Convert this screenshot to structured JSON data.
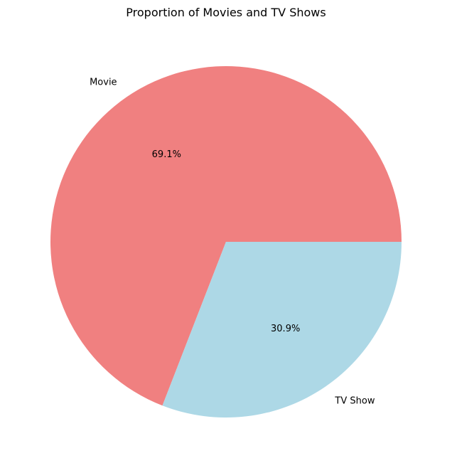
{
  "chart_data": {
    "type": "pie",
    "title": "Proportion of Movies and TV Shows",
    "slices": [
      {
        "label": "Movie",
        "value": 69.1,
        "pct_label": "69.1%",
        "color": "#f08080"
      },
      {
        "label": "TV Show",
        "value": 30.9,
        "pct_label": "30.9%",
        "color": "#add8e6"
      }
    ],
    "start_angle_deg": 0,
    "direction": "counterclockwise",
    "legend": "none"
  }
}
